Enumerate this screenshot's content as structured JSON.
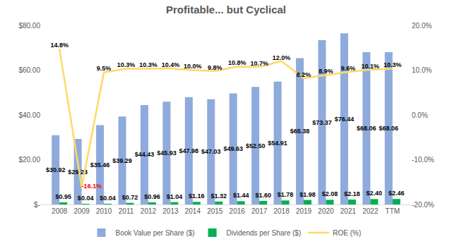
{
  "chart_data": {
    "type": "bar",
    "title": "Profitable... but Cyclical",
    "categories": [
      "2008",
      "2009",
      "2010",
      "2011",
      "2012",
      "2013",
      "2014",
      "2015",
      "2016",
      "2017",
      "2018",
      "2019",
      "2020",
      "2021",
      "2022",
      "TTM"
    ],
    "series": [
      {
        "name": "Book Value per Share ($)",
        "type": "bar",
        "color": "#8faadc",
        "values": [
          30.92,
          29.28,
          35.46,
          39.29,
          44.43,
          45.93,
          47.98,
          47.03,
          49.63,
          52.5,
          54.91,
          65.38,
          73.37,
          76.44,
          68.06,
          68.06
        ],
        "value_labels": [
          "$30.92",
          "$29.28",
          "$35.46",
          "$39.29",
          "$44.43",
          "$45.93",
          "$47.98",
          "$47.03",
          "$49.63",
          "$52.50",
          "$54.91",
          "$65.38",
          "$73.37",
          "$76.44",
          "$68.06",
          "$68.06"
        ]
      },
      {
        "name": "Dividends per Share ($)",
        "type": "bar",
        "color": "#00b050",
        "values": [
          0.95,
          0.04,
          0.04,
          0.72,
          0.96,
          1.04,
          1.16,
          1.32,
          1.44,
          1.6,
          1.78,
          1.98,
          2.08,
          2.18,
          2.4,
          2.46
        ],
        "value_labels": [
          "$0.95",
          "$0.04",
          "$0.04",
          "$0.72",
          "$0.96",
          "$1.04",
          "$1.16",
          "$1.32",
          "$1.44",
          "$1.60",
          "$1.78",
          "$1.98",
          "$2.08",
          "$2.18",
          "$2.40",
          "$2.46"
        ]
      },
      {
        "name": "ROE (%)",
        "type": "line",
        "color": "#ffd966",
        "axis": "y2",
        "values": [
          14.8,
          -16.1,
          9.5,
          10.3,
          10.3,
          10.4,
          10.0,
          9.8,
          10.8,
          10.7,
          12.0,
          8.2,
          8.9,
          9.6,
          10.1,
          10.3
        ],
        "value_labels": [
          "14.8%",
          "-16.1%",
          "9.5%",
          "10.3%",
          "10.3%",
          "10.4%",
          "10.0%",
          "9.8%",
          "10.8%",
          "10.7%",
          "12.0%",
          "8.2%",
          "8.9%",
          "9.6%",
          "10.1%",
          "10.3%"
        ]
      }
    ],
    "ylim": [
      0,
      80
    ],
    "yticks": [
      {
        "value": 0,
        "label": "$-"
      },
      {
        "value": 20,
        "label": "$20.00"
      },
      {
        "value": 40,
        "label": "$40.00"
      },
      {
        "value": 60,
        "label": "$60.00"
      },
      {
        "value": 80,
        "label": "$80.00"
      }
    ],
    "y2lim": [
      -20,
      20
    ],
    "y2ticks": [
      {
        "value": -20,
        "label": "-20.0%"
      },
      {
        "value": -10,
        "label": "-10.0%"
      },
      {
        "value": 0,
        "label": "0.0%"
      },
      {
        "value": 10,
        "label": "10.0%"
      },
      {
        "value": 20,
        "label": "20.0%"
      }
    ],
    "grid": false,
    "legend": "bottom",
    "data_labels": true
  }
}
